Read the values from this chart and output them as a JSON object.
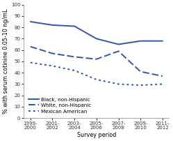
{
  "x_labels": [
    "1999-\n2000",
    "2001-\n2002",
    "2003-\n2004",
    "2005-\n2006",
    "2007-\n2008",
    "2009-\n2010",
    "2011-\n2012"
  ],
  "x_positions": [
    0,
    1,
    2,
    3,
    4,
    5,
    6
  ],
  "black_nonhisp": [
    85,
    82,
    81,
    70,
    65,
    68,
    68
  ],
  "white_nonhisp": [
    63,
    57,
    54,
    52,
    59,
    41,
    37
  ],
  "mexican_american": [
    49,
    46,
    42,
    34,
    30,
    29,
    30
  ],
  "line_color": "#3355aa",
  "ylabel": "% with serum cotinine 0.05-10 ng/mL",
  "xlabel": "Survey period",
  "ylim": [
    0,
    100
  ],
  "yticks": [
    0,
    10,
    20,
    30,
    40,
    50,
    60,
    70,
    80,
    90,
    100
  ],
  "legend_labels": [
    "Black, non-Hispanic",
    "White, non-Hispanic",
    "Mexican American"
  ],
  "tick_fontsize": 5.0,
  "label_fontsize": 5.8,
  "legend_fontsize": 5.2,
  "linewidth": 1.4
}
